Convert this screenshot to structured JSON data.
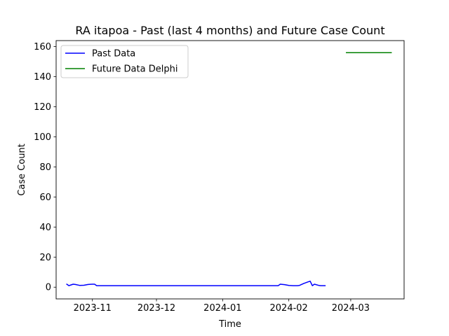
{
  "chart_data": {
    "type": "line",
    "title": "RA itapoa - Past (last 4 months) and Future Case Count",
    "xlabel": "Time",
    "ylabel": "Case Count",
    "xlim": [
      "2023-10-15",
      "2024-03-26"
    ],
    "ylim": [
      -7.8,
      164
    ],
    "x_ticks": [
      "2023-11-01",
      "2023-12-01",
      "2024-01-01",
      "2024-02-01",
      "2024-03-01"
    ],
    "x_tick_labels": [
      "2023-11",
      "2023-12",
      "2024-01",
      "2024-02",
      "2024-03"
    ],
    "y_ticks": [
      0,
      20,
      40,
      60,
      80,
      100,
      120,
      140,
      160
    ],
    "y_tick_labels": [
      "0",
      "20",
      "40",
      "60",
      "80",
      "100",
      "120",
      "140",
      "160"
    ],
    "grid": false,
    "legend_position": "top-left",
    "series": [
      {
        "name": "Past Data",
        "color": "#0000ff",
        "points": [
          [
            "2023-10-20",
            2
          ],
          [
            "2023-10-21",
            1
          ],
          [
            "2023-10-22",
            1.5
          ],
          [
            "2023-10-23",
            2
          ],
          [
            "2023-10-24",
            1.8
          ],
          [
            "2023-10-26",
            1.2
          ],
          [
            "2023-10-28",
            1.3
          ],
          [
            "2023-10-30",
            1.8
          ],
          [
            "2023-11-01",
            2
          ],
          [
            "2023-11-02",
            2
          ],
          [
            "2023-11-03",
            1
          ],
          [
            "2023-12-01",
            1
          ],
          [
            "2024-01-01",
            1
          ],
          [
            "2024-01-27",
            1
          ],
          [
            "2024-01-28",
            2
          ],
          [
            "2024-01-30",
            1.7
          ],
          [
            "2024-02-01",
            1.2
          ],
          [
            "2024-02-03",
            1
          ],
          [
            "2024-02-05",
            1
          ],
          [
            "2024-02-06",
            1.2
          ],
          [
            "2024-02-08",
            2.5
          ],
          [
            "2024-02-10",
            3.5
          ],
          [
            "2024-02-11",
            4
          ],
          [
            "2024-02-12",
            1
          ],
          [
            "2024-02-13",
            2
          ],
          [
            "2024-02-15",
            1.2
          ],
          [
            "2024-02-16",
            1
          ],
          [
            "2024-02-18",
            1
          ]
        ]
      },
      {
        "name": "Future Data Delphi",
        "color": "#008000",
        "points": [
          [
            "2024-02-28",
            156
          ],
          [
            "2024-03-20",
            156
          ]
        ]
      }
    ]
  }
}
